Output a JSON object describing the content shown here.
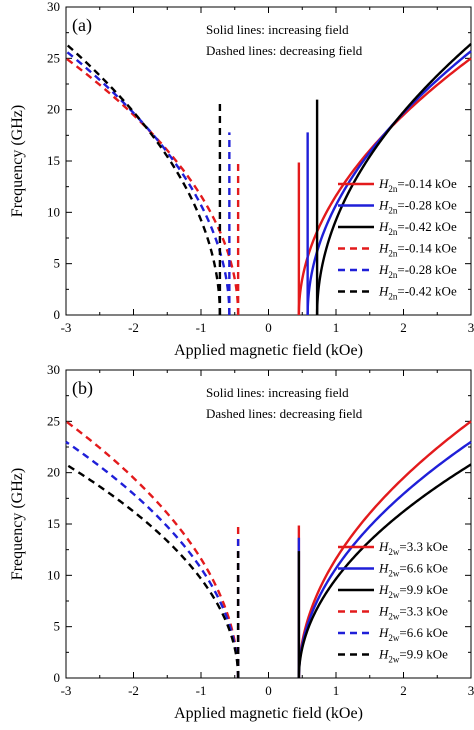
{
  "chart_data": [
    {
      "type": "line",
      "panel_label": "(a)",
      "notes": [
        "Solid lines: increasing field",
        "Dashed lines: decreasing field"
      ],
      "xlabel": "Applied magnetic field (kOe)",
      "ylabel": "Frequency (GHz)",
      "xlim": [
        -3,
        3
      ],
      "ylim": [
        0,
        30
      ],
      "xticks": [
        "-3",
        "-2",
        "-1",
        "0",
        "1",
        "2",
        "3"
      ],
      "yticks": [
        "0",
        "5",
        "10",
        "15",
        "20",
        "25",
        "30"
      ],
      "grid": false,
      "legend_position": "right",
      "legend_var": "H",
      "legend_sub": "2n",
      "series": [
        {
          "name": "=-0.14 kOe",
          "color": "#e31a1c",
          "dash": false,
          "hc": 0.45,
          "f3": 25.0
        },
        {
          "name": "=-0.28 kOe",
          "color": "#1f1fd8",
          "dash": false,
          "hc": 0.58,
          "f3": 25.7
        },
        {
          "name": "=-0.42 kOe",
          "color": "#000000",
          "dash": false,
          "hc": 0.72,
          "f3": 26.4
        },
        {
          "name": "=-0.14 kOe",
          "color": "#e31a1c",
          "dash": true,
          "hc": -0.45,
          "f3": 25.0
        },
        {
          "name": "=-0.28 kOe",
          "color": "#1f1fd8",
          "dash": true,
          "hc": -0.58,
          "f3": 25.7
        },
        {
          "name": "=-0.42 kOe",
          "color": "#000000",
          "dash": true,
          "hc": -0.72,
          "f3": 26.4
        }
      ]
    },
    {
      "type": "line",
      "panel_label": "(b)",
      "notes": [
        "Solid lines: increasing field",
        "Dashed lines: decreasing field"
      ],
      "xlabel": "Applied magnetic field (kOe)",
      "ylabel": "Frequency (GHz)",
      "xlim": [
        -3,
        3
      ],
      "ylim": [
        0,
        30
      ],
      "xticks": [
        "-3",
        "-2",
        "-1",
        "0",
        "1",
        "2",
        "3"
      ],
      "yticks": [
        "0",
        "5",
        "10",
        "15",
        "20",
        "25",
        "30"
      ],
      "grid": false,
      "legend_position": "right",
      "legend_var": "H",
      "legend_sub": "2w",
      "series": [
        {
          "name": "=3.3 kOe",
          "color": "#e31a1c",
          "dash": false,
          "hc": 0.45,
          "f3": 25.0
        },
        {
          "name": "=6.6 kOe",
          "color": "#1f1fd8",
          "dash": false,
          "hc": 0.45,
          "f3": 23.0
        },
        {
          "name": "=9.9 kOe",
          "color": "#000000",
          "dash": false,
          "hc": 0.45,
          "f3": 20.8
        },
        {
          "name": "=3.3 kOe",
          "color": "#e31a1c",
          "dash": true,
          "hc": -0.45,
          "f3": 25.0
        },
        {
          "name": "=6.6 kOe",
          "color": "#1f1fd8",
          "dash": true,
          "hc": -0.45,
          "f3": 23.0
        },
        {
          "name": "=9.9 kOe",
          "color": "#000000",
          "dash": true,
          "hc": -0.45,
          "f3": 20.8
        }
      ]
    }
  ]
}
